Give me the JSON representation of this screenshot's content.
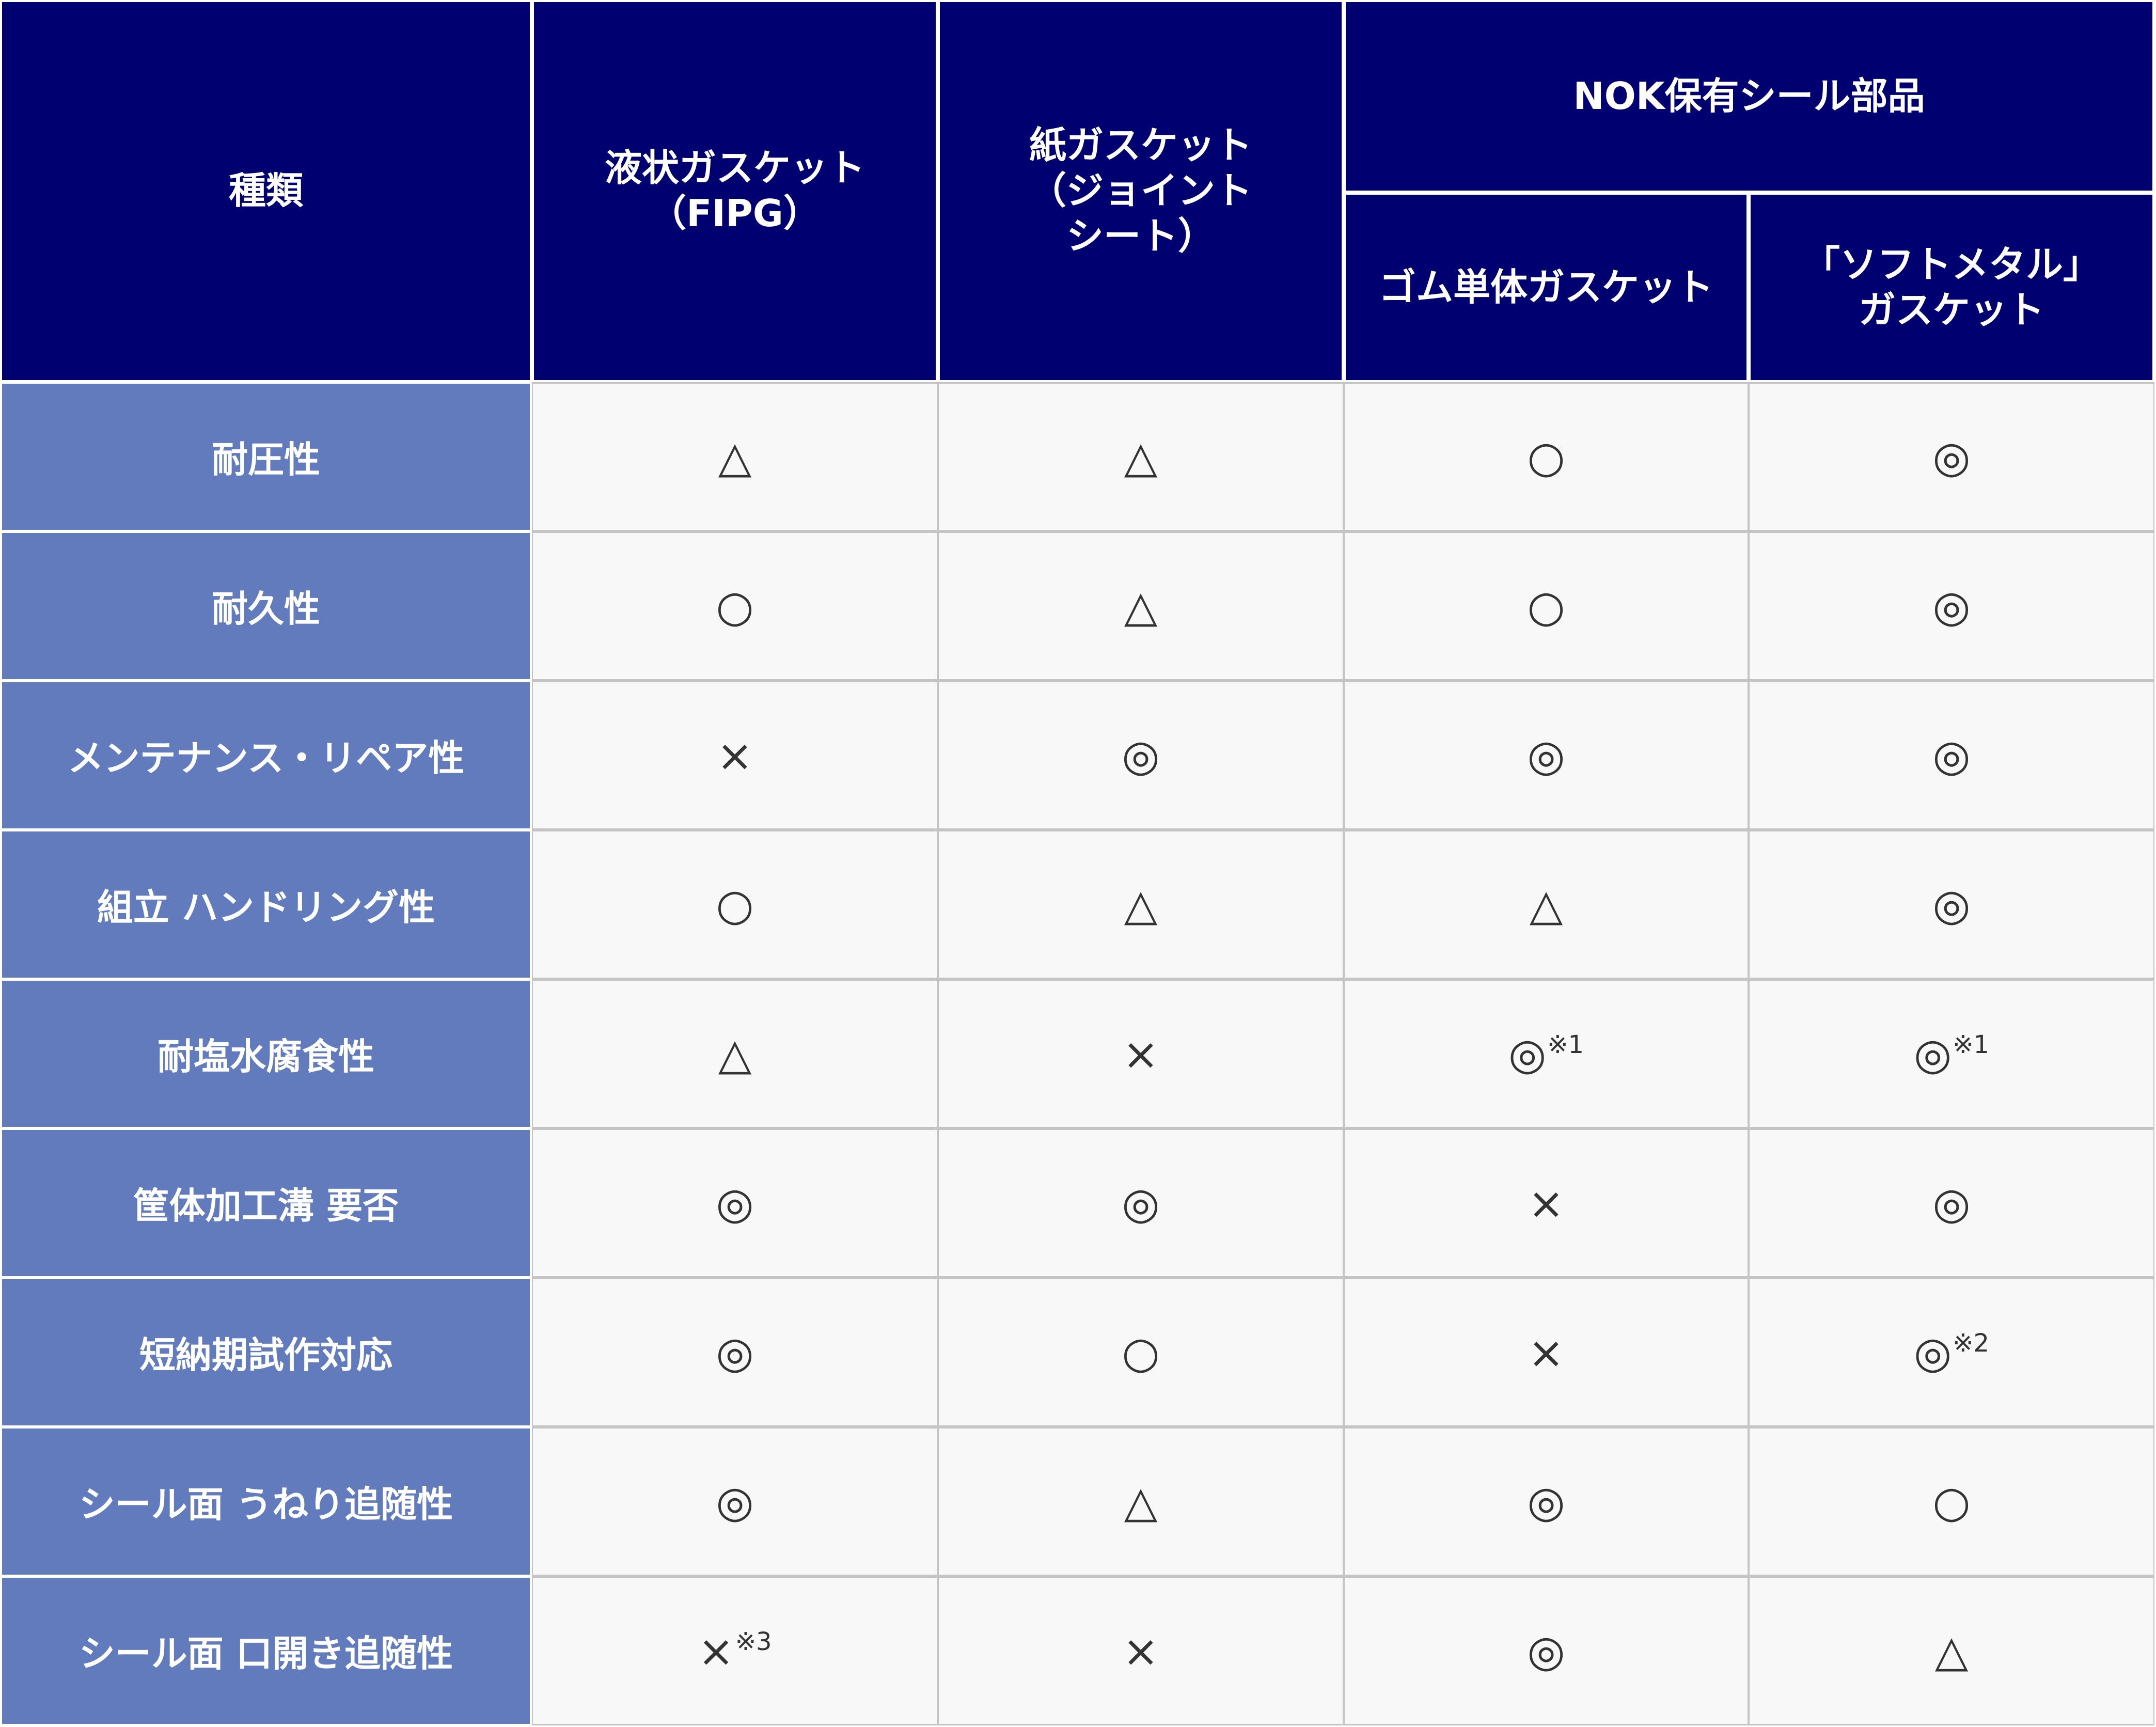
{
  "header": {
    "type_label": "種類",
    "col1": "液状ガスケット\n（FIPG）",
    "col2": "紙ガスケット\n（ジョイント\nシート）",
    "group": "NOK保有シール部品",
    "col3": "ゴム単体ガスケット",
    "col4": "「ソフトメタル」\nガスケット"
  },
  "rows": [
    {
      "label": "耐圧性",
      "values": [
        [
          "△",
          ""
        ],
        [
          "△",
          ""
        ],
        [
          "○",
          ""
        ],
        [
          "◎",
          ""
        ]
      ]
    },
    {
      "label": "耐久性",
      "values": [
        [
          "○",
          ""
        ],
        [
          "△",
          ""
        ],
        [
          "○",
          ""
        ],
        [
          "◎",
          ""
        ]
      ]
    },
    {
      "label": "メンテナンス・リペア性",
      "values": [
        [
          "×",
          ""
        ],
        [
          "◎",
          ""
        ],
        [
          "◎",
          ""
        ],
        [
          "◎",
          ""
        ]
      ]
    },
    {
      "label": "組立 ハンドリング性",
      "values": [
        [
          "○",
          ""
        ],
        [
          "△",
          ""
        ],
        [
          "△",
          ""
        ],
        [
          "◎",
          ""
        ]
      ]
    },
    {
      "label": "耐塩水腐食性",
      "values": [
        [
          "△",
          ""
        ],
        [
          "×",
          ""
        ],
        [
          "◎",
          "※1"
        ],
        [
          "◎",
          "※1"
        ]
      ]
    },
    {
      "label": "筐体加工溝 要否",
      "values": [
        [
          "◎",
          ""
        ],
        [
          "◎",
          ""
        ],
        [
          "×",
          ""
        ],
        [
          "◎",
          ""
        ]
      ]
    },
    {
      "label": "短納期試作対応",
      "values": [
        [
          "◎",
          ""
        ],
        [
          "○",
          ""
        ],
        [
          "×",
          ""
        ],
        [
          "◎",
          "※2"
        ]
      ]
    },
    {
      "label": "シール面 うねり追随性",
      "values": [
        [
          "◎",
          ""
        ],
        [
          "△",
          ""
        ],
        [
          "◎",
          ""
        ],
        [
          "○",
          ""
        ]
      ]
    },
    {
      "label": "シール面 口開き追随性",
      "values": [
        [
          "×",
          "※3"
        ],
        [
          "×",
          ""
        ],
        [
          "◎",
          ""
        ],
        [
          "△",
          ""
        ]
      ]
    }
  ],
  "colors": {
    "header_bg": "#000070",
    "row_header_bg": "#627bbd",
    "cell_bg": "#f8f8f8",
    "grid": "#c4c4c4"
  }
}
